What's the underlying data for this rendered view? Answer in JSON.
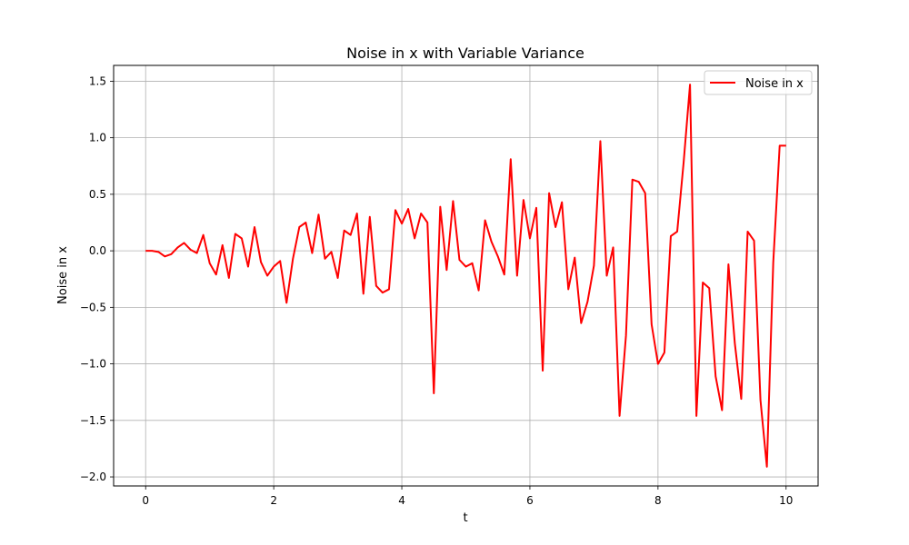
{
  "chart_data": {
    "type": "line",
    "title": "Noise in x with Variable Variance",
    "xlabel": "t",
    "ylabel": "Noise in x",
    "xlim": [
      -0.5,
      10.5
    ],
    "ylim": [
      -2.08,
      1.64
    ],
    "xticks": [
      0,
      2,
      4,
      6,
      8,
      10
    ],
    "xtick_labels": [
      "0",
      "2",
      "4",
      "6",
      "8",
      "10"
    ],
    "yticks": [
      -2.0,
      -1.5,
      -1.0,
      -0.5,
      0.0,
      0.5,
      1.0,
      1.5
    ],
    "ytick_labels": [
      "−2.0",
      "−1.5",
      "−1.0",
      "−0.5",
      "0.0",
      "0.5",
      "1.0",
      "1.5"
    ],
    "grid": true,
    "legend_position": "top-right",
    "series": [
      {
        "name": "Noise in x",
        "color": "#ff0000",
        "x": [
          0.0,
          0.1,
          0.2,
          0.3,
          0.4,
          0.5,
          0.6,
          0.7,
          0.8,
          0.9,
          1.0,
          1.1,
          1.2,
          1.3,
          1.4,
          1.5,
          1.6,
          1.7,
          1.8,
          1.9,
          2.0,
          2.1,
          2.2,
          2.3,
          2.4,
          2.5,
          2.6,
          2.7,
          2.8,
          2.9,
          3.0,
          3.1,
          3.2,
          3.3,
          3.4,
          3.5,
          3.6,
          3.7,
          3.8,
          3.9,
          4.0,
          4.1,
          4.2,
          4.3,
          4.4,
          4.5,
          4.6,
          4.7,
          4.8,
          4.9,
          5.0,
          5.1,
          5.2,
          5.3,
          5.4,
          5.5,
          5.6,
          5.7,
          5.8,
          5.9,
          6.0,
          6.1,
          6.2,
          6.3,
          6.4,
          6.5,
          6.6,
          6.7,
          6.8,
          6.9,
          7.0,
          7.1,
          7.2,
          7.3,
          7.4,
          7.5,
          7.6,
          7.7,
          7.8,
          7.9,
          8.0,
          8.1,
          8.2,
          8.3,
          8.4,
          8.5,
          8.6,
          8.7,
          8.8,
          8.9,
          9.0,
          9.1,
          9.2,
          9.3,
          9.4,
          9.5,
          9.6,
          9.7,
          9.8,
          9.9,
          10.0
        ],
        "y": [
          0.0,
          0.0,
          -0.01,
          -0.05,
          -0.03,
          0.03,
          0.07,
          0.01,
          -0.02,
          0.14,
          -0.11,
          -0.21,
          0.05,
          -0.24,
          0.15,
          0.11,
          -0.14,
          0.21,
          -0.1,
          -0.22,
          -0.14,
          -0.09,
          -0.46,
          -0.07,
          0.21,
          0.25,
          -0.02,
          0.32,
          -0.07,
          -0.01,
          -0.24,
          0.18,
          0.14,
          0.33,
          -0.38,
          0.3,
          -0.31,
          -0.37,
          -0.34,
          0.36,
          0.24,
          0.37,
          0.11,
          0.33,
          0.25,
          -1.26,
          0.39,
          -0.17,
          0.44,
          -0.08,
          -0.14,
          -0.11,
          -0.35,
          0.27,
          0.08,
          -0.05,
          -0.21,
          0.81,
          -0.22,
          0.45,
          0.11,
          0.38,
          -1.06,
          0.51,
          0.21,
          0.43,
          -0.34,
          -0.06,
          -0.64,
          -0.45,
          -0.13,
          0.97,
          -0.22,
          0.03,
          -1.46,
          -0.75,
          0.63,
          0.61,
          0.51,
          -0.65,
          -1.0,
          -0.9,
          0.13,
          0.17,
          0.78,
          1.47,
          -1.46,
          -0.28,
          -0.33,
          -1.11,
          -1.41,
          -0.12,
          -0.82,
          -1.31,
          0.17,
          0.09,
          -1.32,
          -1.91,
          -0.1,
          0.93,
          0.93
        ]
      }
    ]
  }
}
